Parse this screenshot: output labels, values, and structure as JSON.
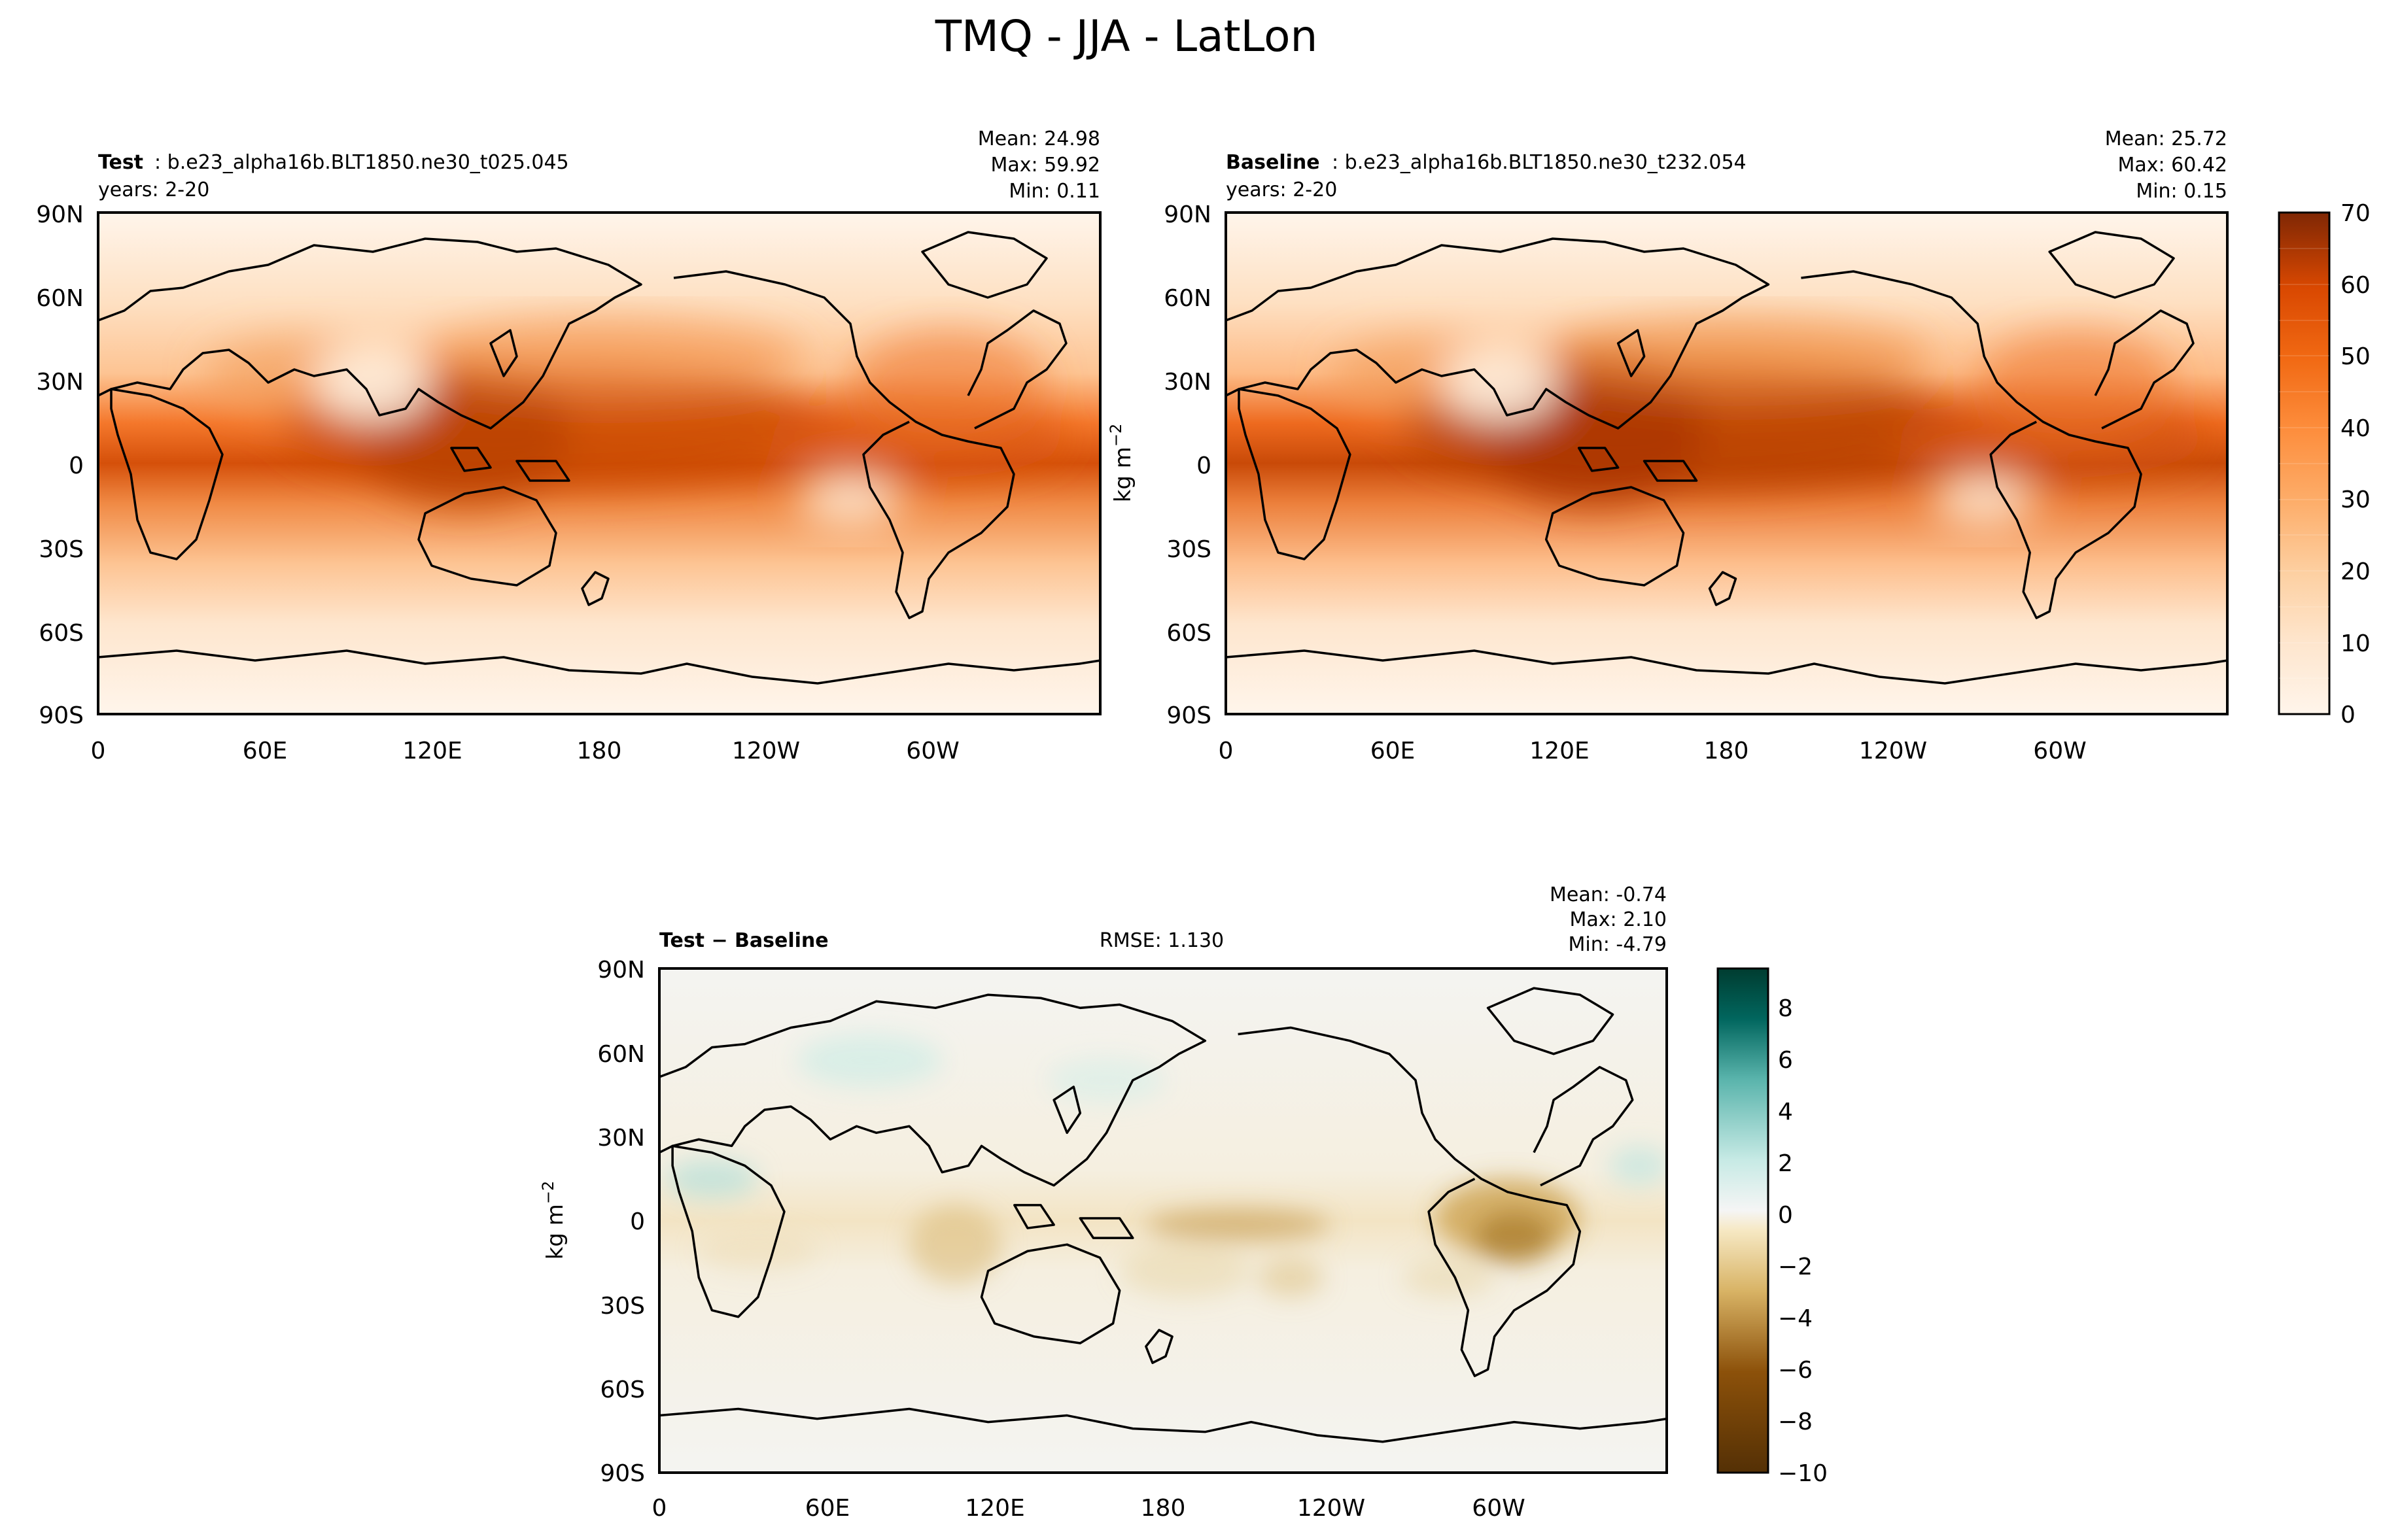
{
  "figure": {
    "title": "TMQ - JJA - LatLon"
  },
  "panels": {
    "test": {
      "label_bold": "Test",
      "label_rest": "b.e23_alpha16b.BLT1850.ne30_t025.045",
      "years": "years: 2-20",
      "stats": [
        "Mean: 24.98",
        "Max: 59.92",
        "Min:  0.11"
      ]
    },
    "baseline": {
      "label_bold": "Baseline",
      "label_rest": "b.e23_alpha16b.BLT1850.ne30_t232.054",
      "years": "years: 2-20",
      "stats": [
        "Mean: 25.72",
        "Max: 60.42",
        "Min:  0.15"
      ]
    },
    "diff": {
      "label": "Test − Baseline",
      "rmse": "RMSE: 1.130",
      "stats": [
        "Mean: -0.74",
        "Max:  2.10",
        "Min: -4.79"
      ]
    }
  },
  "units": "kg m",
  "units_exp": "−2",
  "colors": {
    "field_scale": [
      "#fff5eb",
      "#fee6ce",
      "#fdd7b2",
      "#fdc493",
      "#fdae6b",
      "#fd9243",
      "#f4772b",
      "#e6580d",
      "#cc4503",
      "#a83503",
      "#7f2704"
    ],
    "diff_scale": {
      "neg_end": "#543005",
      "mid": "#f5f5f5",
      "pos_end": "#003c30"
    },
    "coast": "#000000",
    "ocean_bg_test": "#fdd9b8",
    "ocean_bg_diff": "#f6f2e8"
  },
  "chart_data": [
    {
      "type": "heatmap",
      "name": "test",
      "variable": "TMQ",
      "units": "kg m-2",
      "x_ticks": [
        "0",
        "60E",
        "120E",
        "180",
        "120W",
        "60W"
      ],
      "y_ticks": [
        "90N",
        "60N",
        "30N",
        "0",
        "30S",
        "60S",
        "90S"
      ],
      "xlim": [
        0,
        360
      ],
      "ylim": [
        -90,
        90
      ],
      "color_levels": [
        0,
        5,
        10,
        15,
        20,
        25,
        30,
        35,
        40,
        45,
        50,
        55,
        60,
        65,
        70
      ],
      "mean": 24.98,
      "max": 59.92,
      "min": 0.11
    },
    {
      "type": "heatmap",
      "name": "baseline",
      "variable": "TMQ",
      "units": "kg m-2",
      "x_ticks": [
        "0",
        "60E",
        "120E",
        "180",
        "120W",
        "60W"
      ],
      "y_ticks": [
        "90N",
        "60N",
        "30N",
        "0",
        "30S",
        "60S",
        "90S"
      ],
      "xlim": [
        0,
        360
      ],
      "ylim": [
        -90,
        90
      ],
      "colorbar_ticks": [
        "0",
        "10",
        "20",
        "30",
        "40",
        "50",
        "60",
        "70"
      ],
      "color_levels": [
        0,
        5,
        10,
        15,
        20,
        25,
        30,
        35,
        40,
        45,
        50,
        55,
        60,
        65,
        70
      ],
      "mean": 25.72,
      "max": 60.42,
      "min": 0.15
    },
    {
      "type": "heatmap",
      "name": "difference",
      "units": "kg m-2",
      "x_ticks": [
        "0",
        "60E",
        "120E",
        "180",
        "120W",
        "60W"
      ],
      "y_ticks": [
        "90N",
        "60N",
        "30N",
        "0",
        "30S",
        "60S",
        "90S"
      ],
      "xlim": [
        0,
        360
      ],
      "ylim": [
        -90,
        90
      ],
      "colorbar_ticks": [
        "8",
        "6",
        "4",
        "2",
        "0",
        "−2",
        "−4",
        "−6",
        "−8",
        "−10"
      ],
      "color_range": [
        -10,
        9.5
      ],
      "mean": -0.74,
      "max": 2.1,
      "min": -4.79,
      "rmse": 1.13
    }
  ]
}
